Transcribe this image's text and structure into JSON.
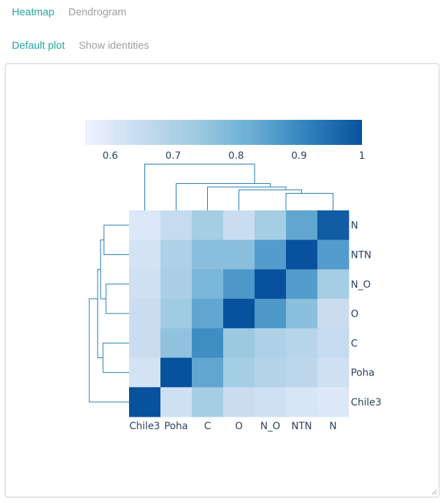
{
  "tabs": [
    {
      "label": "Heatmap",
      "active": true
    },
    {
      "label": "Dendrogram",
      "active": false
    }
  ],
  "subtabs": [
    {
      "label": "Default plot",
      "active": true
    },
    {
      "label": "Show identities",
      "active": false
    }
  ],
  "colors": {
    "accent": "#26a69a",
    "inactive": "#9e9e9e",
    "dendrogram": "#1f77b4"
  },
  "chart_data": {
    "type": "heatmap",
    "columns": [
      "Chile3",
      "Poha",
      "C",
      "O",
      "N_O",
      "NTN",
      "N"
    ],
    "rows": [
      "N",
      "NTN",
      "N_O",
      "O",
      "C",
      "Poha",
      "Chile3"
    ],
    "z": [
      [
        0.6,
        0.65,
        0.72,
        0.64,
        0.72,
        0.84,
        0.98
      ],
      [
        0.62,
        0.7,
        0.77,
        0.77,
        0.86,
        1.0,
        0.86
      ],
      [
        0.63,
        0.71,
        0.8,
        0.87,
        1.0,
        0.86,
        0.72
      ],
      [
        0.64,
        0.73,
        0.84,
        1.0,
        0.87,
        0.77,
        0.64
      ],
      [
        0.64,
        0.76,
        0.89,
        0.74,
        0.7,
        0.68,
        0.65
      ],
      [
        0.62,
        1.0,
        0.84,
        0.72,
        0.69,
        0.67,
        0.63
      ],
      [
        1.0,
        0.63,
        0.72,
        0.64,
        0.63,
        0.61,
        0.6
      ]
    ],
    "colorscale": [
      "#eff3ff",
      "#c6dbef",
      "#9ecae1",
      "#6baed6",
      "#3182bd",
      "#08519c"
    ],
    "zmin": 0.56,
    "zmax": 1.0,
    "colorbar_ticks": [
      0.6,
      0.7,
      0.8,
      0.9,
      1
    ],
    "colorbar_tick_labels": [
      "0.6",
      "0.7",
      "0.8",
      "0.9",
      "1"
    ],
    "colorbar_orientation": "horizontal",
    "colorbar_placement": "top",
    "dendrogram_top": {
      "links": [
        {
          "left": [
            "N_O",
            "NTN"
          ],
          "right": [
            "N"
          ],
          "height": 0.35
        },
        {
          "left": [
            "O"
          ],
          "right": [
            "N_O",
            "NTN",
            "N"
          ],
          "height": 0.42
        },
        {
          "left": [
            "C"
          ],
          "right": [
            "O",
            "N_O",
            "NTN",
            "N"
          ],
          "height": 0.48
        },
        {
          "left": [
            "Poha"
          ],
          "right": [
            "C",
            "O",
            "N_O",
            "NTN",
            "N"
          ],
          "height": 0.55
        },
        {
          "left": [
            "Chile3"
          ],
          "right": [
            "Poha",
            "C",
            "O",
            "N_O",
            "NTN",
            "N"
          ],
          "height": 0.95
        }
      ]
    },
    "dendrogram_left": {
      "links": [
        {
          "left": [
            "N"
          ],
          "right": [
            "NTN"
          ],
          "height": 0.6
        },
        {
          "left": [
            "N_O"
          ],
          "right": [
            "O"
          ],
          "height": 0.55
        },
        {
          "left": [
            "N",
            "NTN"
          ],
          "right": [
            "N_O",
            "O"
          ],
          "height": 0.68
        },
        {
          "left": [
            "C"
          ],
          "right": [
            "Poha"
          ],
          "height": 0.62
        },
        {
          "left": [
            "N",
            "NTN",
            "N_O",
            "O"
          ],
          "right": [
            "C",
            "Poha"
          ],
          "height": 0.75
        },
        {
          "left": [
            "N",
            "NTN",
            "N_O",
            "O",
            "C",
            "Poha"
          ],
          "right": [
            "Chile3"
          ],
          "height": 0.95
        }
      ]
    }
  }
}
